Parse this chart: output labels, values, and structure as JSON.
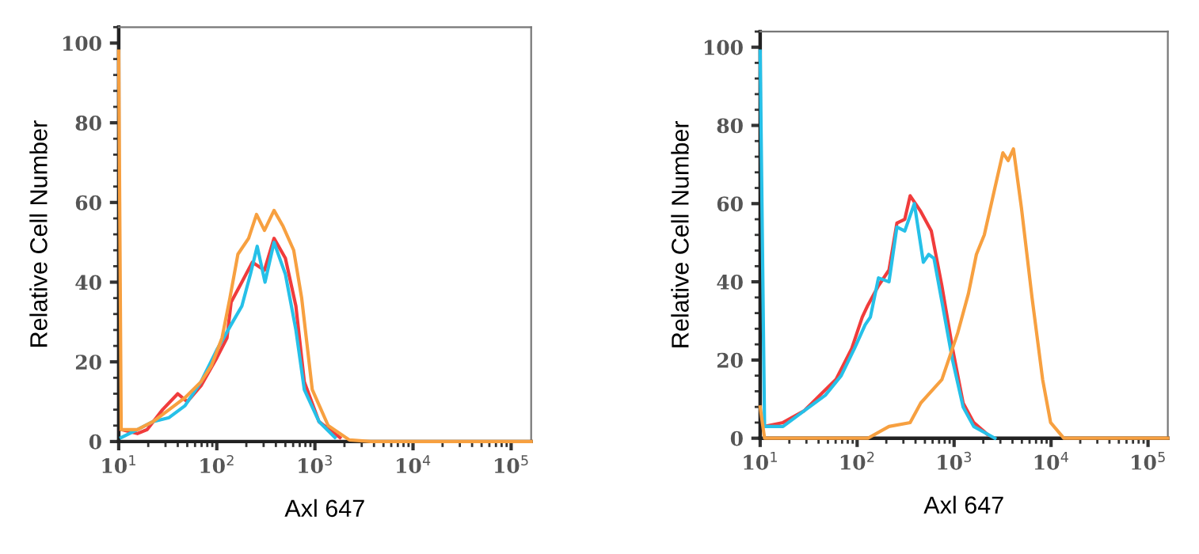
{
  "chart_data": [
    {
      "type": "line",
      "xlabel": "Axl 647",
      "ylabel": "Relative Cell Number",
      "log": "x",
      "xlim": [
        10,
        160000
      ],
      "ylim": [
        0,
        104
      ],
      "xticks": [
        {
          "value": 10,
          "label": "10$^{1}$"
        },
        {
          "value": 100,
          "label": "10$^{2}$"
        },
        {
          "value": 1000,
          "label": "10$^{3}$"
        },
        {
          "value": 10000,
          "label": "10$^{4}$"
        },
        {
          "value": 100000,
          "label": "10$^{5}$"
        }
      ],
      "yticks": [
        0,
        20,
        40,
        60,
        80,
        100
      ],
      "grid": false,
      "legend": false,
      "marker": "none",
      "line_style": "solid",
      "series": [
        {
          "color": "#f03c3c",
          "x": [
            10.6,
            15.5,
            19.5,
            28,
            40,
            50,
            69,
            100,
            127,
            140,
            180,
            230,
            306,
            383,
            500,
            640,
            780,
            1100,
            1800
          ],
          "values": [
            3,
            2,
            3,
            8,
            12,
            10,
            14,
            21,
            26,
            35,
            40,
            45,
            43,
            51,
            46,
            34,
            15,
            5,
            1
          ]
        },
        {
          "color": "#26c0e8",
          "x": [
            10.6,
            15.5,
            22.4,
            32.6,
            47.4,
            69,
            100,
            145,
            180,
            220,
            258,
            310,
            383,
            500,
            640,
            780,
            1100,
            1600
          ],
          "values": [
            1,
            3,
            5,
            6,
            9,
            15,
            23,
            30,
            34,
            42,
            49,
            40,
            50,
            42,
            28,
            13,
            5,
            1
          ]
        },
        {
          "color": "#f7a040",
          "x": [
            10,
            10.6,
            15.5,
            22.4,
            32.6,
            47.4,
            69,
            88,
            113,
            136,
            164,
            211,
            254,
            306,
            383,
            474,
            608,
            733,
            940,
            1365,
            2245,
            3700,
            160000
          ],
          "values": [
            98,
            3,
            3,
            5,
            8,
            11,
            15,
            19,
            26,
            36,
            47,
            51,
            57,
            53,
            58,
            54,
            48,
            36,
            13,
            4,
            0.4,
            0,
            0
          ]
        }
      ]
    },
    {
      "type": "line",
      "xlabel": "Axl 647",
      "ylabel": "Relative Cell Number",
      "log": "x",
      "xlim": [
        10,
        160000
      ],
      "ylim": [
        0,
        104
      ],
      "xticks": [
        {
          "value": 10,
          "label": "10$^{1}$"
        },
        {
          "value": 100,
          "label": "10$^{2}$"
        },
        {
          "value": 1000,
          "label": "10$^{3}$"
        },
        {
          "value": 10000,
          "label": "10$^{4}$"
        },
        {
          "value": 100000,
          "label": "10$^{5}$"
        }
      ],
      "yticks": [
        0,
        20,
        40,
        60,
        80,
        100
      ],
      "grid": false,
      "legend": false,
      "marker": "none",
      "line_style": "solid",
      "series": [
        {
          "color": "#f03c3c",
          "x": [
            11.1,
            17.2,
            28.4,
            41.4,
            60.4,
            88.1,
            113,
            129,
            166,
            213,
            257,
            310,
            352,
            453,
            582,
            748,
            963,
            1239,
            1593,
            2200
          ],
          "values": [
            3,
            4,
            7,
            11,
            15,
            23,
            31,
            34,
            39,
            43,
            55,
            56,
            62,
            58,
            53,
            39,
            23,
            9,
            4,
            1
          ]
        },
        {
          "color": "#26c0e8",
          "x": [
            10,
            11.1,
            17.2,
            28.4,
            47,
            68.5,
            94,
            121,
            137,
            166,
            213,
            257,
            310,
            389,
            482,
            547,
            620,
            748,
            963,
            1239,
            1593,
            2634
          ],
          "values": [
            99,
            3,
            3,
            7,
            11,
            16,
            23,
            29,
            31,
            41,
            40,
            54,
            53,
            60,
            45,
            47,
            46,
            35,
            20,
            8,
            3,
            0
          ]
        },
        {
          "color": "#f7a040",
          "x": [
            10,
            11.1,
            36.6,
            129,
            213,
            352,
            453,
            748,
            1092,
            1406,
            1698,
            2049,
            2634,
            3186,
            3609,
            4093,
            4943,
            6359,
            8187,
            9890,
            13530,
            160000
          ],
          "values": [
            8,
            0,
            0,
            0,
            3,
            4,
            9,
            15,
            27,
            37,
            47,
            52,
            64,
            73,
            71,
            74,
            59,
            36,
            15,
            4,
            0,
            0
          ]
        }
      ]
    }
  ]
}
